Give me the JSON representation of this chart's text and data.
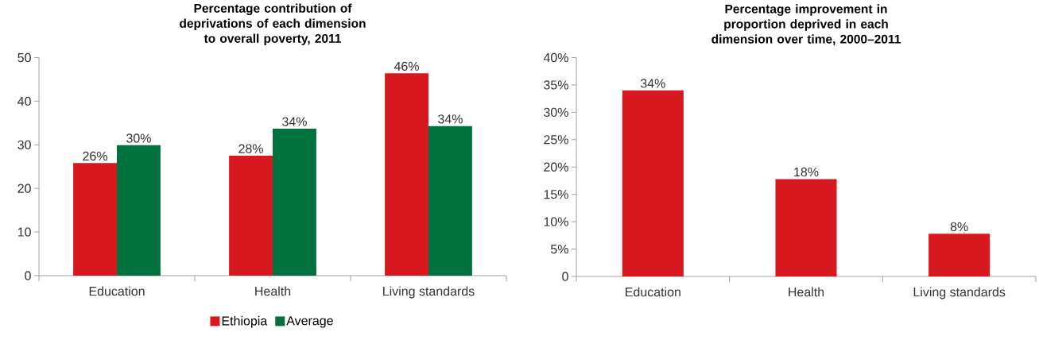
{
  "chart_data": [
    {
      "type": "bar",
      "title": "Percentage contribution of deprivations of each dimension to overall poverty, 2011",
      "categories": [
        "Education",
        "Health",
        "Living standards"
      ],
      "series": [
        {
          "name": "Ethiopia",
          "color": "#d7181f",
          "values": [
            25.8,
            27.5,
            46.4
          ],
          "value_labels": [
            "26%",
            "28%",
            "46%"
          ]
        },
        {
          "name": "Average",
          "color": "#00703c",
          "values": [
            29.9,
            33.7,
            34.3
          ],
          "value_labels": [
            "30%",
            "34%",
            "34%"
          ]
        }
      ],
      "ylim": [
        0,
        50
      ],
      "yticks": [
        0,
        10,
        20,
        30,
        40,
        50
      ],
      "legend": "bottom",
      "grid": false
    },
    {
      "type": "bar",
      "title": "Percentage improvement in proportion deprived in each dimension over time, 2000–2011",
      "categories": [
        "Education",
        "Health",
        "Living standards"
      ],
      "series": [
        {
          "color": "#d7181f",
          "values": [
            34.0,
            17.8,
            7.8
          ],
          "value_labels": [
            "34%",
            "18%",
            "8%"
          ]
        }
      ],
      "ylim": [
        0,
        40
      ],
      "yticks": [
        0,
        {
          "value": 5,
          "label": "5%"
        },
        {
          "value": 10,
          "label": "10%"
        },
        {
          "value": 15,
          "label": "15%"
        },
        {
          "value": 20,
          "label": "20%"
        },
        {
          "value": 25,
          "label": "25%"
        },
        {
          "value": 30,
          "label": "30%"
        },
        {
          "value": 35,
          "label": "35%"
        },
        {
          "value": 40,
          "label": "40%"
        }
      ],
      "grid": false
    }
  ]
}
